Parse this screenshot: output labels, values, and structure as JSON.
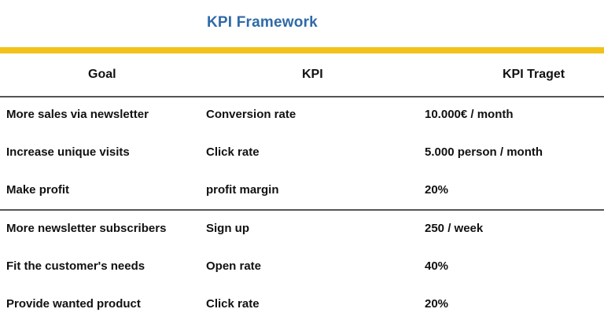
{
  "title": "KPI Framework",
  "colors": {
    "title": "#2e6aa8",
    "accent_bar": "#f2c21b",
    "rule": "#555555"
  },
  "table": {
    "headers": [
      "Goal",
      "KPI",
      "KPI Traget"
    ],
    "groups": [
      {
        "rows": [
          [
            "More sales via newsletter",
            "Conversion rate",
            "10.000€ / month"
          ],
          [
            "Increase unique visits",
            "Click rate",
            "5.000 person / month"
          ],
          [
            "Make profit",
            "profit margin",
            "20%"
          ]
        ]
      },
      {
        "rows": [
          [
            "More newsletter subscribers",
            "Sign up",
            "250 / week"
          ],
          [
            "Fit the customer's needs",
            "Open rate",
            "40%"
          ],
          [
            "Provide wanted product",
            "Click rate",
            "20%"
          ]
        ]
      }
    ]
  }
}
